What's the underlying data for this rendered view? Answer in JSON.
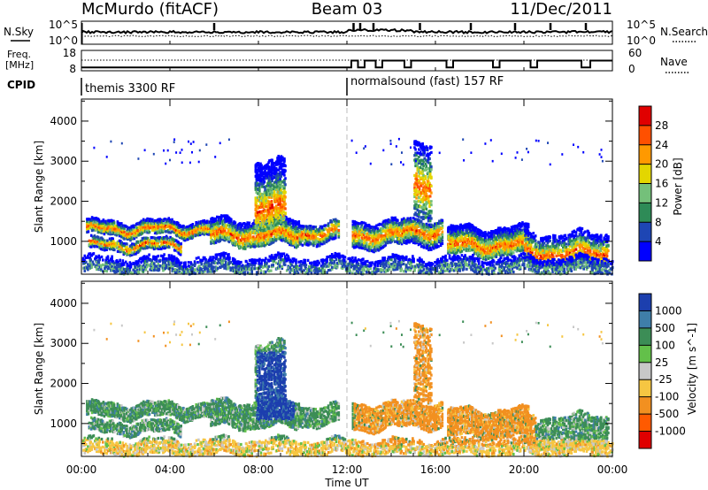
{
  "chart_data": {
    "type": "heatmap",
    "header": {
      "station": "McMurdo (fitACF)",
      "beam": "Beam 03",
      "date": "11/Dec/2011"
    },
    "summary_panels": {
      "nsky": {
        "label": "N.Sky",
        "yticks_left": [
          "10^5",
          "10^0"
        ],
        "yticks_right": [
          "10^5",
          "10^0"
        ],
        "right_label": "N.Search"
      },
      "freq": {
        "label_lines": [
          "Freq.",
          "[MHz]"
        ],
        "yticks_left": [
          "18",
          "8"
        ],
        "yticks_right": [
          "60",
          "0"
        ],
        "right_label": "Nave",
        "nave_steps": [
          [
            0,
            10
          ],
          [
            12.2,
            10
          ],
          [
            12.2,
            30
          ],
          [
            12.5,
            30
          ],
          [
            12.5,
            10
          ],
          [
            12.8,
            10
          ],
          [
            12.8,
            30
          ],
          [
            13.3,
            30
          ],
          [
            13.3,
            10
          ],
          [
            13.6,
            10
          ],
          [
            13.6,
            30
          ],
          [
            14.6,
            30
          ],
          [
            14.6,
            10
          ],
          [
            14.9,
            10
          ],
          [
            14.9,
            30
          ],
          [
            16.5,
            30
          ],
          [
            16.5,
            10
          ],
          [
            16.8,
            10
          ],
          [
            16.8,
            30
          ],
          [
            18.6,
            30
          ],
          [
            18.6,
            10
          ],
          [
            18.9,
            10
          ],
          [
            18.9,
            30
          ],
          [
            20.3,
            30
          ],
          [
            20.3,
            10
          ],
          [
            20.6,
            10
          ],
          [
            20.6,
            30
          ],
          [
            22.6,
            30
          ],
          [
            22.6,
            10
          ],
          [
            23.0,
            10
          ],
          [
            23.0,
            30
          ],
          [
            24,
            30
          ]
        ]
      },
      "cpid": {
        "label": "CPID",
        "modes": [
          {
            "name": "themis 3300 RF",
            "start_hour": 0
          },
          {
            "name": "normalsound (fast) 157 RF",
            "start_hour": 12
          }
        ]
      }
    },
    "xaxis": {
      "label": "Time UT",
      "range_hours": [
        0,
        24
      ],
      "ticks": [
        "00:00",
        "04:00",
        "08:00",
        "12:00",
        "16:00",
        "20:00",
        "00:00"
      ]
    },
    "yaxis": {
      "label": "Slant Range [km]",
      "range": [
        180,
        4550
      ],
      "ticks": [
        1000,
        2000,
        3000,
        4000
      ]
    },
    "power_panel": {
      "colorbar_label": "Power [dB]",
      "colorbar_ticks": [
        "4",
        "8",
        "12",
        "16",
        "20",
        "24",
        "28"
      ],
      "colors": [
        "#0000ff",
        "#1e46b4",
        "#2e8b57",
        "#74c07a",
        "#e3d600",
        "#ff9900",
        "#ff5000",
        "#e00000"
      ]
    },
    "velocity_panel": {
      "colorbar_label": "Velocity [m s^-1]",
      "colorbar_ticks": [
        "1000",
        "500",
        "100",
        "25",
        "-25",
        "-100",
        "-500",
        "-1000"
      ],
      "colors": [
        "#1c3fae",
        "#3f7ea9",
        "#3c8d56",
        "#63c04a",
        "#c8c8c8",
        "#f6c642",
        "#f29020",
        "#ff5a00",
        "#e00000"
      ]
    },
    "scatter_bands": [
      {
        "t0": 0.2,
        "t1": 5.8,
        "r0": 1150,
        "r1": 1500,
        "core": 1300,
        "dens": 0.75
      },
      {
        "t0": 0.3,
        "t1": 4.5,
        "r0": 750,
        "r1": 1050,
        "core": 900,
        "dens": 0.6
      },
      {
        "t0": 5.8,
        "t1": 9.8,
        "r0": 900,
        "r1": 1550,
        "core": 1150,
        "dens": 0.7
      },
      {
        "t0": 7.8,
        "t1": 9.2,
        "r0": 1300,
        "r1": 3000,
        "core": 1800,
        "dens": 0.55
      },
      {
        "t0": 9.8,
        "t1": 11.6,
        "r0": 950,
        "r1": 1450,
        "core": 1200,
        "dens": 0.6
      },
      {
        "t0": 12.2,
        "t1": 14.5,
        "r0": 850,
        "r1": 1500,
        "core": 1150,
        "dens": 0.65
      },
      {
        "t0": 14.5,
        "t1": 16.3,
        "r0": 900,
        "r1": 1550,
        "core": 1250,
        "dens": 0.6
      },
      {
        "t0": 15.0,
        "t1": 15.8,
        "r0": 1600,
        "r1": 3500,
        "core": 2400,
        "dens": 0.35
      },
      {
        "t0": 16.5,
        "t1": 20.2,
        "r0": 650,
        "r1": 1350,
        "core": 900,
        "dens": 0.7
      },
      {
        "t0": 20.0,
        "t1": 23.8,
        "r0": 400,
        "r1": 1200,
        "core": 700,
        "dens": 0.5
      },
      {
        "t0": 0.0,
        "t1": 24.0,
        "r0": 200,
        "r1": 600,
        "core": 300,
        "dens": 0.45
      }
    ]
  }
}
